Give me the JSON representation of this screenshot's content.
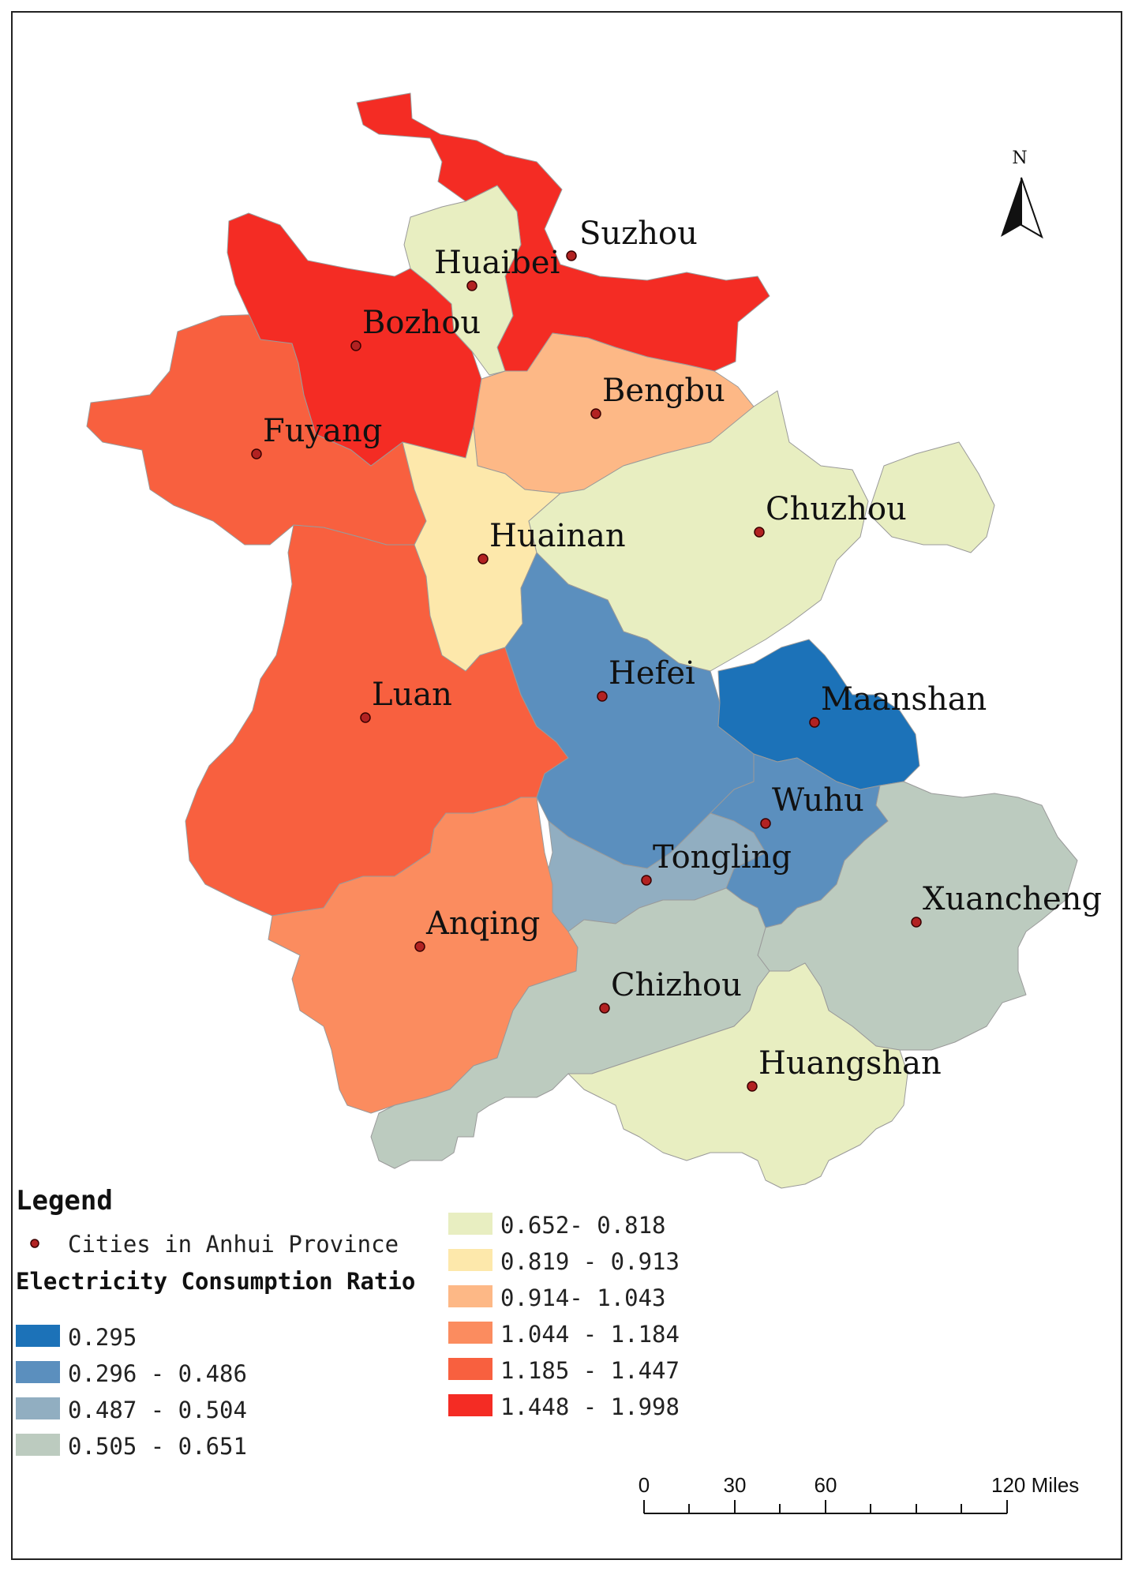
{
  "map": {
    "north_label": "N",
    "cities": [
      {
        "name": "Suzhou",
        "class": 10
      },
      {
        "name": "Huaibei",
        "class": 5
      },
      {
        "name": "Bozhou",
        "class": 10
      },
      {
        "name": "Fuyang",
        "class": 9
      },
      {
        "name": "Bengbu",
        "class": 7
      },
      {
        "name": "Chuzhou",
        "class": 5
      },
      {
        "name": "Huainan",
        "class": 6
      },
      {
        "name": "Hefei",
        "class": 2
      },
      {
        "name": "Maanshan",
        "class": 1
      },
      {
        "name": "Luan",
        "class": 9
      },
      {
        "name": "Wuhu",
        "class": 2
      },
      {
        "name": "Tongling",
        "class": 3
      },
      {
        "name": "Xuancheng",
        "class": 4
      },
      {
        "name": "Anqing",
        "class": 8
      },
      {
        "name": "Chizhou",
        "class": 4
      },
      {
        "name": "Huangshan",
        "class": 5
      }
    ]
  },
  "legend": {
    "title": "Legend",
    "point_label": "Cities in Anhui Province",
    "field_label": "Electricity Consumption Ratio",
    "classes": [
      {
        "label": "0.295",
        "color": "#1c72b8"
      },
      {
        "label": "0.296 - 0.486",
        "color": "#5b8fbe"
      },
      {
        "label": "0.487 - 0.504",
        "color": "#91aec1"
      },
      {
        "label": "0.505 - 0.651",
        "color": "#bccbbf"
      },
      {
        "label": "0.652- 0.818",
        "color": "#e8eec1"
      },
      {
        "label": "0.819 - 0.913",
        "color": "#fde8ab"
      },
      {
        "label": "0.914- 1.043",
        "color": "#fdb886"
      },
      {
        "label": "1.044 - 1.184",
        "color": "#fb8c5f"
      },
      {
        "label": "1.185 - 1.447",
        "color": "#f8603f"
      },
      {
        "label": "1.448 - 1.998",
        "color": "#f42c24"
      }
    ]
  },
  "scale_bar": {
    "ticks": [
      "0",
      "30",
      "60",
      "120 Miles"
    ]
  }
}
